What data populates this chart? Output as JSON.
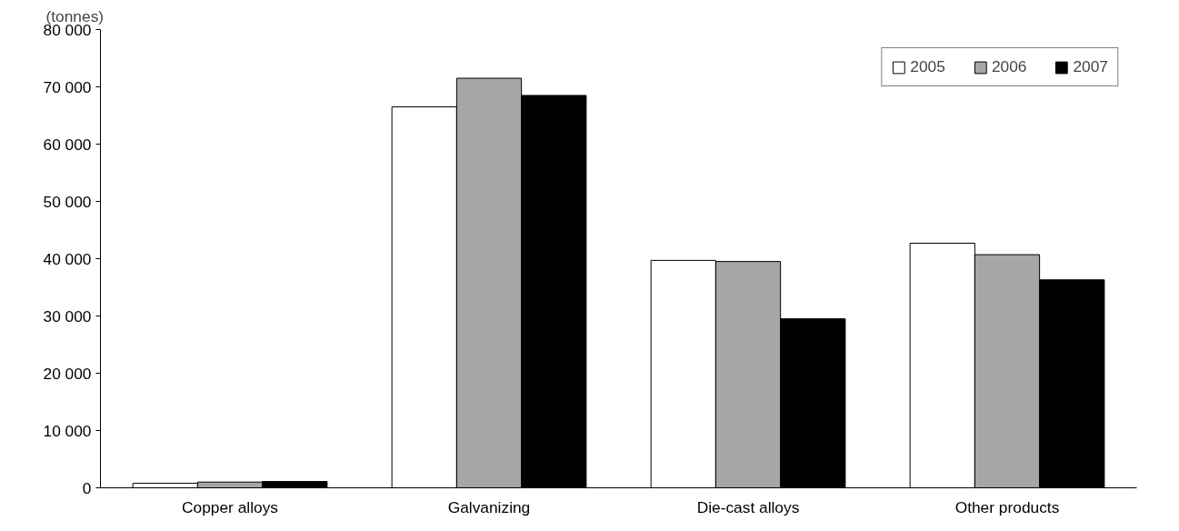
{
  "chart_data": {
    "type": "bar",
    "ylabel": "(tonnes)",
    "categories": [
      "Copper alloys",
      "Galvanizing",
      "Die-cast alloys",
      "Other products"
    ],
    "series": [
      {
        "name": "2005",
        "color": "#ffffff",
        "values": [
          800,
          66500,
          39700,
          42700
        ]
      },
      {
        "name": "2006",
        "color": "#a6a6a6",
        "values": [
          1000,
          71500,
          39500,
          40700
        ]
      },
      {
        "name": "2007",
        "color": "#000000",
        "values": [
          1100,
          68500,
          29500,
          36300
        ]
      }
    ],
    "ylim": [
      0,
      80000
    ],
    "yticks": [
      0,
      {
        "value": 10000,
        "label": "10 000"
      },
      {
        "value": 20000,
        "label": "20 000"
      },
      {
        "value": 30000,
        "label": "30 000"
      },
      {
        "value": 40000,
        "label": "40 000"
      },
      {
        "value": 50000,
        "label": "50 000"
      },
      {
        "value": 60000,
        "label": "60 000"
      },
      {
        "value": 70000,
        "label": "70 000"
      },
      {
        "value": 80000,
        "label": "80 000"
      }
    ],
    "grid": false,
    "legend": "top right"
  }
}
